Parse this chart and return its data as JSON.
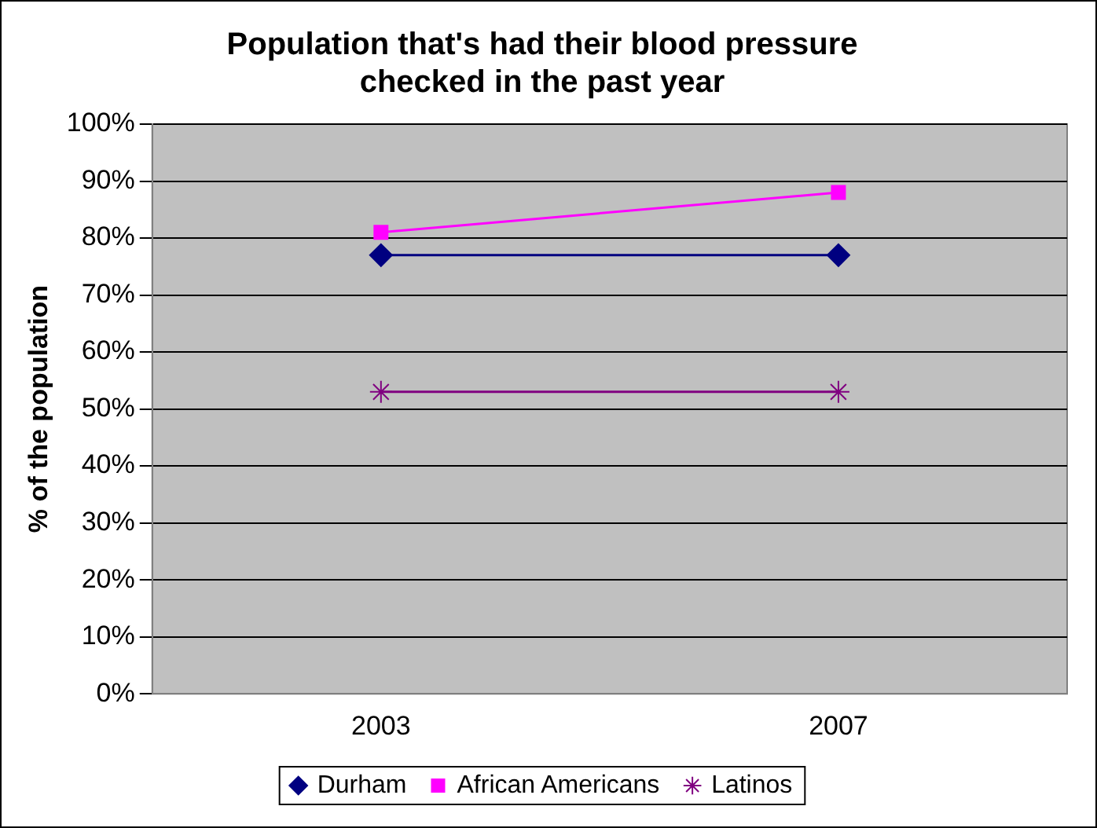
{
  "chart_data": {
    "type": "line",
    "title": "Population that's had their blood pressure checked in the past year",
    "ylabel": "% of the population",
    "categories": [
      "2003",
      "2007"
    ],
    "series": [
      {
        "name": "Durham",
        "color": "#000080",
        "values": [
          77,
          77
        ],
        "marker": "diamond"
      },
      {
        "name": "African Americans",
        "color": "#ff00ff",
        "values": [
          81,
          88
        ],
        "marker": "square"
      },
      {
        "name": "Latinos",
        "color": "#800080",
        "values": [
          53,
          53
        ],
        "marker": "cross"
      }
    ],
    "ylim": [
      0,
      100
    ],
    "yticks": [
      {
        "value": 0,
        "label": "0%"
      },
      {
        "value": 10,
        "label": "10%"
      },
      {
        "value": 20,
        "label": "20%"
      },
      {
        "value": 30,
        "label": "30%"
      },
      {
        "value": 40,
        "label": "40%"
      },
      {
        "value": 50,
        "label": "50%"
      },
      {
        "value": 60,
        "label": "60%"
      },
      {
        "value": 70,
        "label": "70%"
      },
      {
        "value": 80,
        "label": "80%"
      },
      {
        "value": 90,
        "label": "90%"
      },
      {
        "value": 100,
        "label": "100%"
      }
    ],
    "grid": "y",
    "legend": "bottom",
    "line_style": "solid"
  }
}
